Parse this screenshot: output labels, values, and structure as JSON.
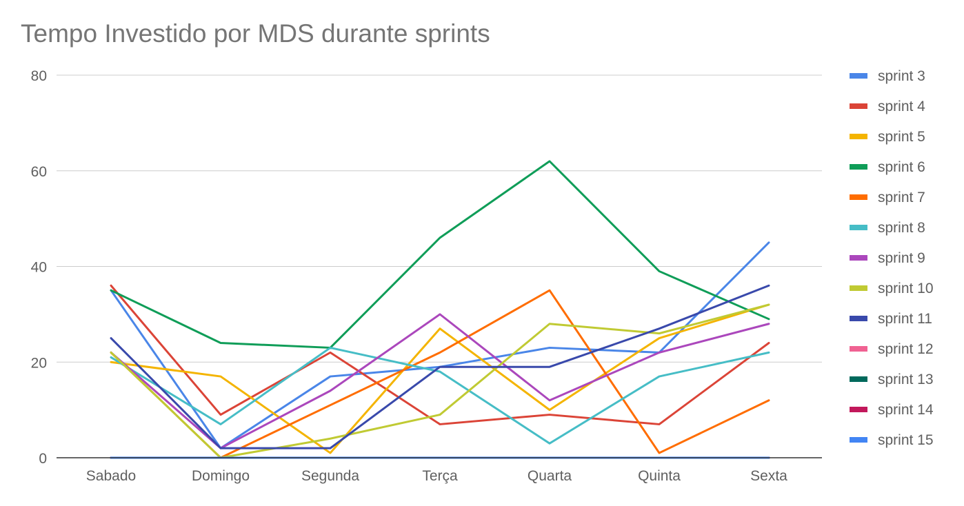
{
  "chart_data": {
    "type": "line",
    "title": "Tempo Investido por MDS durante sprints",
    "xlabel": "",
    "ylabel": "",
    "ylim": [
      0,
      80
    ],
    "yticks": [
      0,
      20,
      40,
      60,
      80
    ],
    "grid": true,
    "legend_position": "right",
    "categories": [
      "Sabado",
      "Domingo",
      "Segunda",
      "Terça",
      "Quarta",
      "Quinta",
      "Sexta"
    ],
    "series": [
      {
        "name": "sprint 3",
        "color": "#4a86e8",
        "values": [
          35,
          2,
          17,
          19,
          23,
          22,
          45
        ]
      },
      {
        "name": "sprint 4",
        "color": "#db4437",
        "values": [
          36,
          9,
          22,
          7,
          9,
          7,
          24
        ]
      },
      {
        "name": "sprint 5",
        "color": "#f4b400",
        "values": [
          20,
          17,
          1,
          27,
          10,
          25,
          32
        ]
      },
      {
        "name": "sprint 6",
        "color": "#0f9d58",
        "values": [
          35,
          24,
          23,
          46,
          62,
          39,
          29
        ]
      },
      {
        "name": "sprint 7",
        "color": "#ff6d00",
        "values": [
          22,
          0,
          11,
          22,
          35,
          1,
          12
        ]
      },
      {
        "name": "sprint 8",
        "color": "#46bdc6",
        "values": [
          21,
          7,
          23,
          18,
          3,
          17,
          22
        ]
      },
      {
        "name": "sprint 9",
        "color": "#ab47bc",
        "values": [
          22,
          2,
          14,
          30,
          12,
          22,
          28
        ]
      },
      {
        "name": "sprint 10",
        "color": "#c0ca33",
        "values": [
          22,
          0,
          4,
          9,
          28,
          26,
          32
        ]
      },
      {
        "name": "sprint 11",
        "color": "#3949ab",
        "values": [
          25,
          2,
          2,
          19,
          19,
          27,
          36
        ]
      },
      {
        "name": "sprint 12",
        "color": "#f06292",
        "values": [
          0,
          0,
          0,
          0,
          0,
          0,
          0
        ]
      },
      {
        "name": "sprint 13",
        "color": "#00695c",
        "values": [
          0,
          0,
          0,
          0,
          0,
          0,
          0
        ]
      },
      {
        "name": "sprint 14",
        "color": "#c2185b",
        "values": [
          0,
          0,
          0,
          0,
          0,
          0,
          0
        ]
      },
      {
        "name": "sprint 15",
        "color": "#4285f4",
        "values": [
          0,
          0,
          0,
          0,
          0,
          0,
          0
        ]
      }
    ]
  }
}
